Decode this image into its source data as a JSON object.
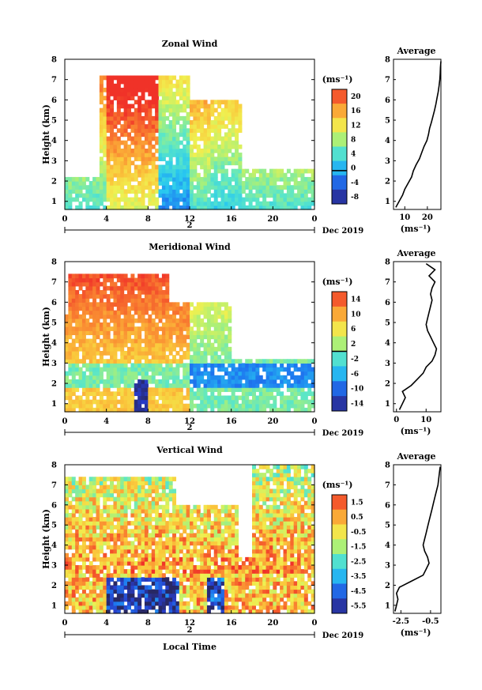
{
  "chart_data": [
    {
      "type": "heatmap",
      "title": "Zonal Wind",
      "ylabel": "Height (km)",
      "yticks": [
        "1",
        "2",
        "3",
        "4",
        "5",
        "6",
        "7",
        "8"
      ],
      "xticks": [
        "0",
        "4",
        "8",
        "12",
        "16",
        "20",
        "0"
      ],
      "day_label": "2",
      "date_label": "Dec 2019",
      "colorbar_title": "(ms⁻¹)",
      "colorbar_ticks": [
        "20",
        "16",
        "12",
        "8",
        "4",
        "0",
        "-4",
        "-8"
      ],
      "color_range": [
        -9,
        22
      ],
      "zero_line": 0,
      "profile": {
        "title": "Average",
        "xlabel": "(ms⁻¹)",
        "xticks": [
          "10",
          "20"
        ],
        "xlim": [
          5,
          26
        ],
        "heights": [
          0.7,
          1.0,
          1.3,
          1.6,
          1.9,
          2.2,
          2.5,
          2.8,
          3.1,
          3.4,
          3.7,
          4.0,
          4.3,
          4.6,
          4.9,
          5.2,
          5.5,
          5.8,
          6.1,
          6.4,
          6.7,
          7.0,
          7.3,
          7.6,
          7.9
        ],
        "values": [
          6,
          7.5,
          9,
          10,
          11.5,
          13,
          13.8,
          15,
          16.5,
          17.5,
          18.5,
          19.8,
          20.5,
          21,
          21.8,
          22.5,
          23.2,
          23.8,
          24.3,
          24.8,
          25.2,
          25.5,
          25.7,
          25.8,
          26
        ]
      }
    },
    {
      "type": "heatmap",
      "title": "Meridional Wind",
      "ylabel": "Height (km)",
      "yticks": [
        "1",
        "2",
        "3",
        "4",
        "5",
        "6",
        "7",
        "8"
      ],
      "xticks": [
        "0",
        "4",
        "8",
        "12",
        "16",
        "20",
        "0"
      ],
      "day_label": "2",
      "date_label": "Dec 2019",
      "colorbar_title": "(ms⁻¹)",
      "colorbar_ticks": [
        "14",
        "10",
        "6",
        "2",
        "-2",
        "-6",
        "-10",
        "-14"
      ],
      "color_range": [
        -16,
        16
      ],
      "zero_line": 0,
      "profile": {
        "title": "Average",
        "xlabel": "(ms⁻¹)",
        "xticks": [
          "0",
          "10"
        ],
        "xlim": [
          -1,
          15
        ],
        "heights": [
          0.7,
          1.0,
          1.3,
          1.6,
          1.9,
          2.2,
          2.5,
          2.8,
          3.1,
          3.4,
          3.7,
          4.0,
          4.3,
          4.6,
          4.9,
          5.2,
          5.5,
          5.8,
          6.1,
          6.4,
          6.7,
          7.0,
          7.3,
          7.6,
          7.9
        ],
        "values": [
          1,
          2,
          3,
          2,
          5,
          7,
          9,
          10,
          12,
          13,
          13.5,
          12.5,
          11.5,
          10.5,
          10,
          10.5,
          11,
          11.5,
          12,
          11.5,
          12,
          13,
          11,
          13,
          10
        ]
      }
    },
    {
      "type": "heatmap",
      "title": "Vertical Wind",
      "ylabel": "Height (km)",
      "xlabel": "Local Time",
      "yticks": [
        "1",
        "2",
        "3",
        "4",
        "5",
        "6",
        "7",
        "8"
      ],
      "xticks": [
        "0",
        "4",
        "8",
        "12",
        "16",
        "20",
        "0"
      ],
      "day_label": "2",
      "date_label": "Dec 2019",
      "colorbar_title": "(ms⁻¹)",
      "colorbar_ticks": [
        "1.5",
        "0.5",
        "-0.5",
        "-1.5",
        "-2.5",
        "-3.5",
        "-4.5",
        "-5.5"
      ],
      "color_range": [
        -6.0,
        2.0
      ],
      "profile": {
        "title": "Average",
        "xlabel": "(ms⁻¹)",
        "xticks": [
          "-2.5",
          "-0.5"
        ],
        "xlim": [
          -3.0,
          0.2
        ],
        "heights": [
          0.7,
          1.0,
          1.3,
          1.6,
          1.9,
          2.2,
          2.5,
          2.8,
          3.1,
          3.4,
          3.7,
          4.0,
          4.3,
          4.6,
          4.9,
          5.2,
          5.5,
          5.8,
          6.1,
          6.4,
          6.7,
          7.0,
          7.3,
          7.6,
          7.9
        ],
        "values": [
          -2.9,
          -2.8,
          -2.7,
          -2.8,
          -2.6,
          -1.8,
          -1.0,
          -0.8,
          -0.6,
          -0.7,
          -0.9,
          -1.0,
          -0.9,
          -0.8,
          -0.7,
          -0.6,
          -0.5,
          -0.4,
          -0.3,
          -0.2,
          -0.1,
          0.0,
          0.05,
          0.1,
          0.15
        ]
      }
    }
  ]
}
